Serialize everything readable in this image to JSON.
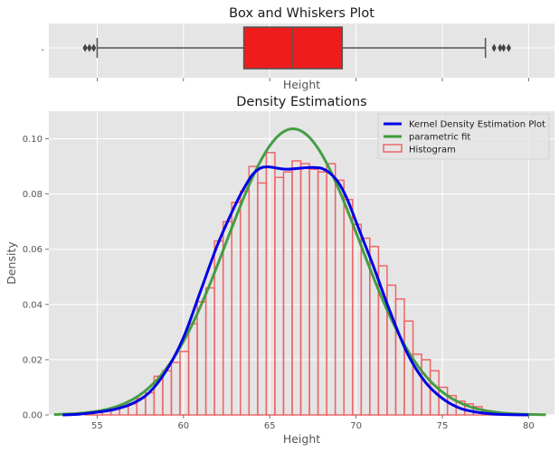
{
  "chart_data": [
    {
      "type": "box",
      "title": "Box and Whiskers Plot",
      "xlabel": "Height",
      "ylabel": "",
      "y_tick_label": "-",
      "x_ticks": [
        55,
        60,
        65,
        70,
        75,
        80
      ],
      "xlim": [
        52.2,
        81.5
      ],
      "box": {
        "q1": 63.5,
        "median": 66.3,
        "q3": 69.2,
        "whisker_low": 55.0,
        "whisker_high": 77.5
      },
      "outliers": [
        54.3,
        54.55,
        54.8,
        78.0,
        78.35,
        78.55,
        78.85
      ],
      "colors": {
        "box_fill": "#ee1c1c",
        "box_edge": "#555555",
        "median": "#555555"
      }
    },
    {
      "type": "histogram_density",
      "title": "Density Estimations",
      "xlabel": "Height",
      "ylabel": "Density",
      "xlim": [
        52.2,
        81.5
      ],
      "ylim": [
        0,
        0.11
      ],
      "x_ticks": [
        55,
        60,
        65,
        70,
        75,
        80
      ],
      "y_ticks": [
        0.0,
        0.02,
        0.04,
        0.06,
        0.08,
        0.1
      ],
      "y_tick_labels": [
        "0.00",
        "0.02",
        "0.04",
        "0.06",
        "0.08",
        "0.10"
      ],
      "legend": {
        "position": "top-right",
        "entries": [
          {
            "label": "Kernel Density Estimation Plot",
            "kind": "line",
            "color": "#0000e6"
          },
          {
            "label": "parametric fit",
            "kind": "line",
            "color": "#3c9a3c"
          },
          {
            "label": "Histogram",
            "kind": "patch",
            "color": "#ee6666"
          }
        ]
      },
      "histogram": {
        "bin_start": 54.3,
        "bin_width": 0.5,
        "color": "#ee6666",
        "values": [
          0.0005,
          0.001,
          0.0015,
          0.0025,
          0.003,
          0.004,
          0.006,
          0.008,
          0.014,
          0.016,
          0.019,
          0.023,
          0.033,
          0.041,
          0.046,
          0.063,
          0.07,
          0.077,
          0.081,
          0.09,
          0.084,
          0.095,
          0.086,
          0.088,
          0.092,
          0.091,
          0.089,
          0.088,
          0.091,
          0.085,
          0.078,
          0.069,
          0.064,
          0.061,
          0.054,
          0.047,
          0.042,
          0.034,
          0.022,
          0.02,
          0.016,
          0.01,
          0.007,
          0.005,
          0.004,
          0.003,
          0.0015,
          0.001
        ]
      },
      "kde": {
        "name": "Kernel Density Estimation Plot",
        "color": "#0000e6",
        "x": [
          53.0,
          54.0,
          55.0,
          56.0,
          57.0,
          58.0,
          59.0,
          60.0,
          61.0,
          62.0,
          63.0,
          63.5,
          64.0,
          64.5,
          65.0,
          65.5,
          66.0,
          66.5,
          67.0,
          67.5,
          68.0,
          68.5,
          69.0,
          69.5,
          70.0,
          70.5,
          71.0,
          72.0,
          73.0,
          74.0,
          75.0,
          76.0,
          77.0,
          78.0,
          79.0,
          80.0
        ],
        "y": [
          0.0,
          0.0003,
          0.001,
          0.002,
          0.004,
          0.008,
          0.016,
          0.028,
          0.045,
          0.062,
          0.076,
          0.082,
          0.087,
          0.0895,
          0.0898,
          0.0893,
          0.089,
          0.0892,
          0.0895,
          0.0896,
          0.0893,
          0.0875,
          0.084,
          0.078,
          0.07,
          0.062,
          0.054,
          0.037,
          0.022,
          0.012,
          0.006,
          0.0025,
          0.001,
          0.0003,
          0.0001,
          0.0
        ]
      },
      "parametric_fit": {
        "name": "parametric fit",
        "color": "#3c9a3c",
        "distribution": "normal",
        "mean": 66.35,
        "std": 3.85,
        "x_range": [
          52.5,
          81.0
        ]
      }
    }
  ]
}
